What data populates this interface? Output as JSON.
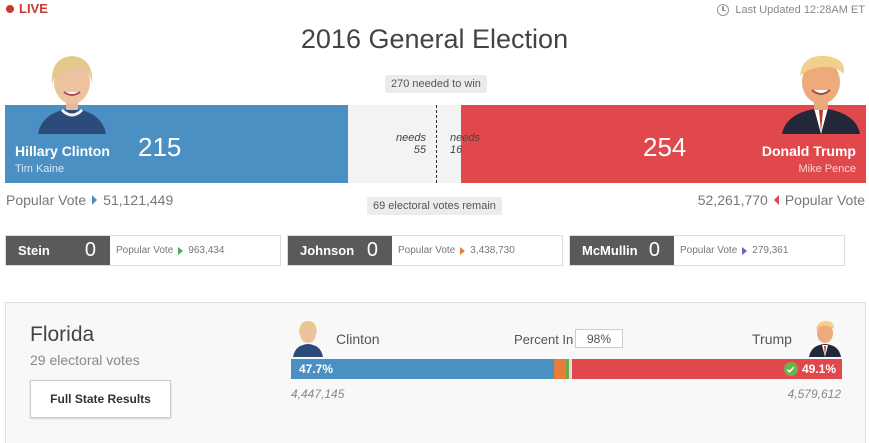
{
  "live_label": "LIVE",
  "last_updated": "Last Updated 12:28AM ET",
  "title": "2016 General Election",
  "needed_to_win": "270 needed to win",
  "remaining": "69 electoral votes remain",
  "democrat": {
    "name": "Hillary Clinton",
    "vp": "Tim Kaine",
    "electoral_votes": "215",
    "needs_label": "needs",
    "needs_value": "55",
    "popular_label": "Popular Vote",
    "popular_votes": "51,121,449",
    "color": "#4a90c2"
  },
  "republican": {
    "name": "Donald Trump",
    "vp": "Mike Pence",
    "electoral_votes": "254",
    "needs_label": "needs",
    "needs_value": "16",
    "popular_label": "Popular Vote",
    "popular_votes": "52,261,770",
    "color": "#e0484b"
  },
  "third_party": [
    {
      "name": "Stein",
      "electoral_votes": "0",
      "popular_label": "Popular Vote",
      "popular_votes": "963,434",
      "color": "#4caf50"
    },
    {
      "name": "Johnson",
      "electoral_votes": "0",
      "popular_label": "Popular Vote",
      "popular_votes": "3,438,730",
      "color": "#e67e3a"
    },
    {
      "name": "McMullin",
      "electoral_votes": "0",
      "popular_label": "Popular Vote",
      "popular_votes": "279,361",
      "color": "#7e57c2"
    }
  ],
  "state": {
    "name": "Florida",
    "electoral_votes_label": "29 electoral votes",
    "button_label": "Full State Results",
    "percent_in_label": "Percent In",
    "percent_in": "98%",
    "dem_name": "Clinton",
    "rep_name": "Trump",
    "dem_pct": "47.7%",
    "rep_pct": "49.1%",
    "dem_votes": "4,447,145",
    "rep_votes": "4,579,612"
  }
}
